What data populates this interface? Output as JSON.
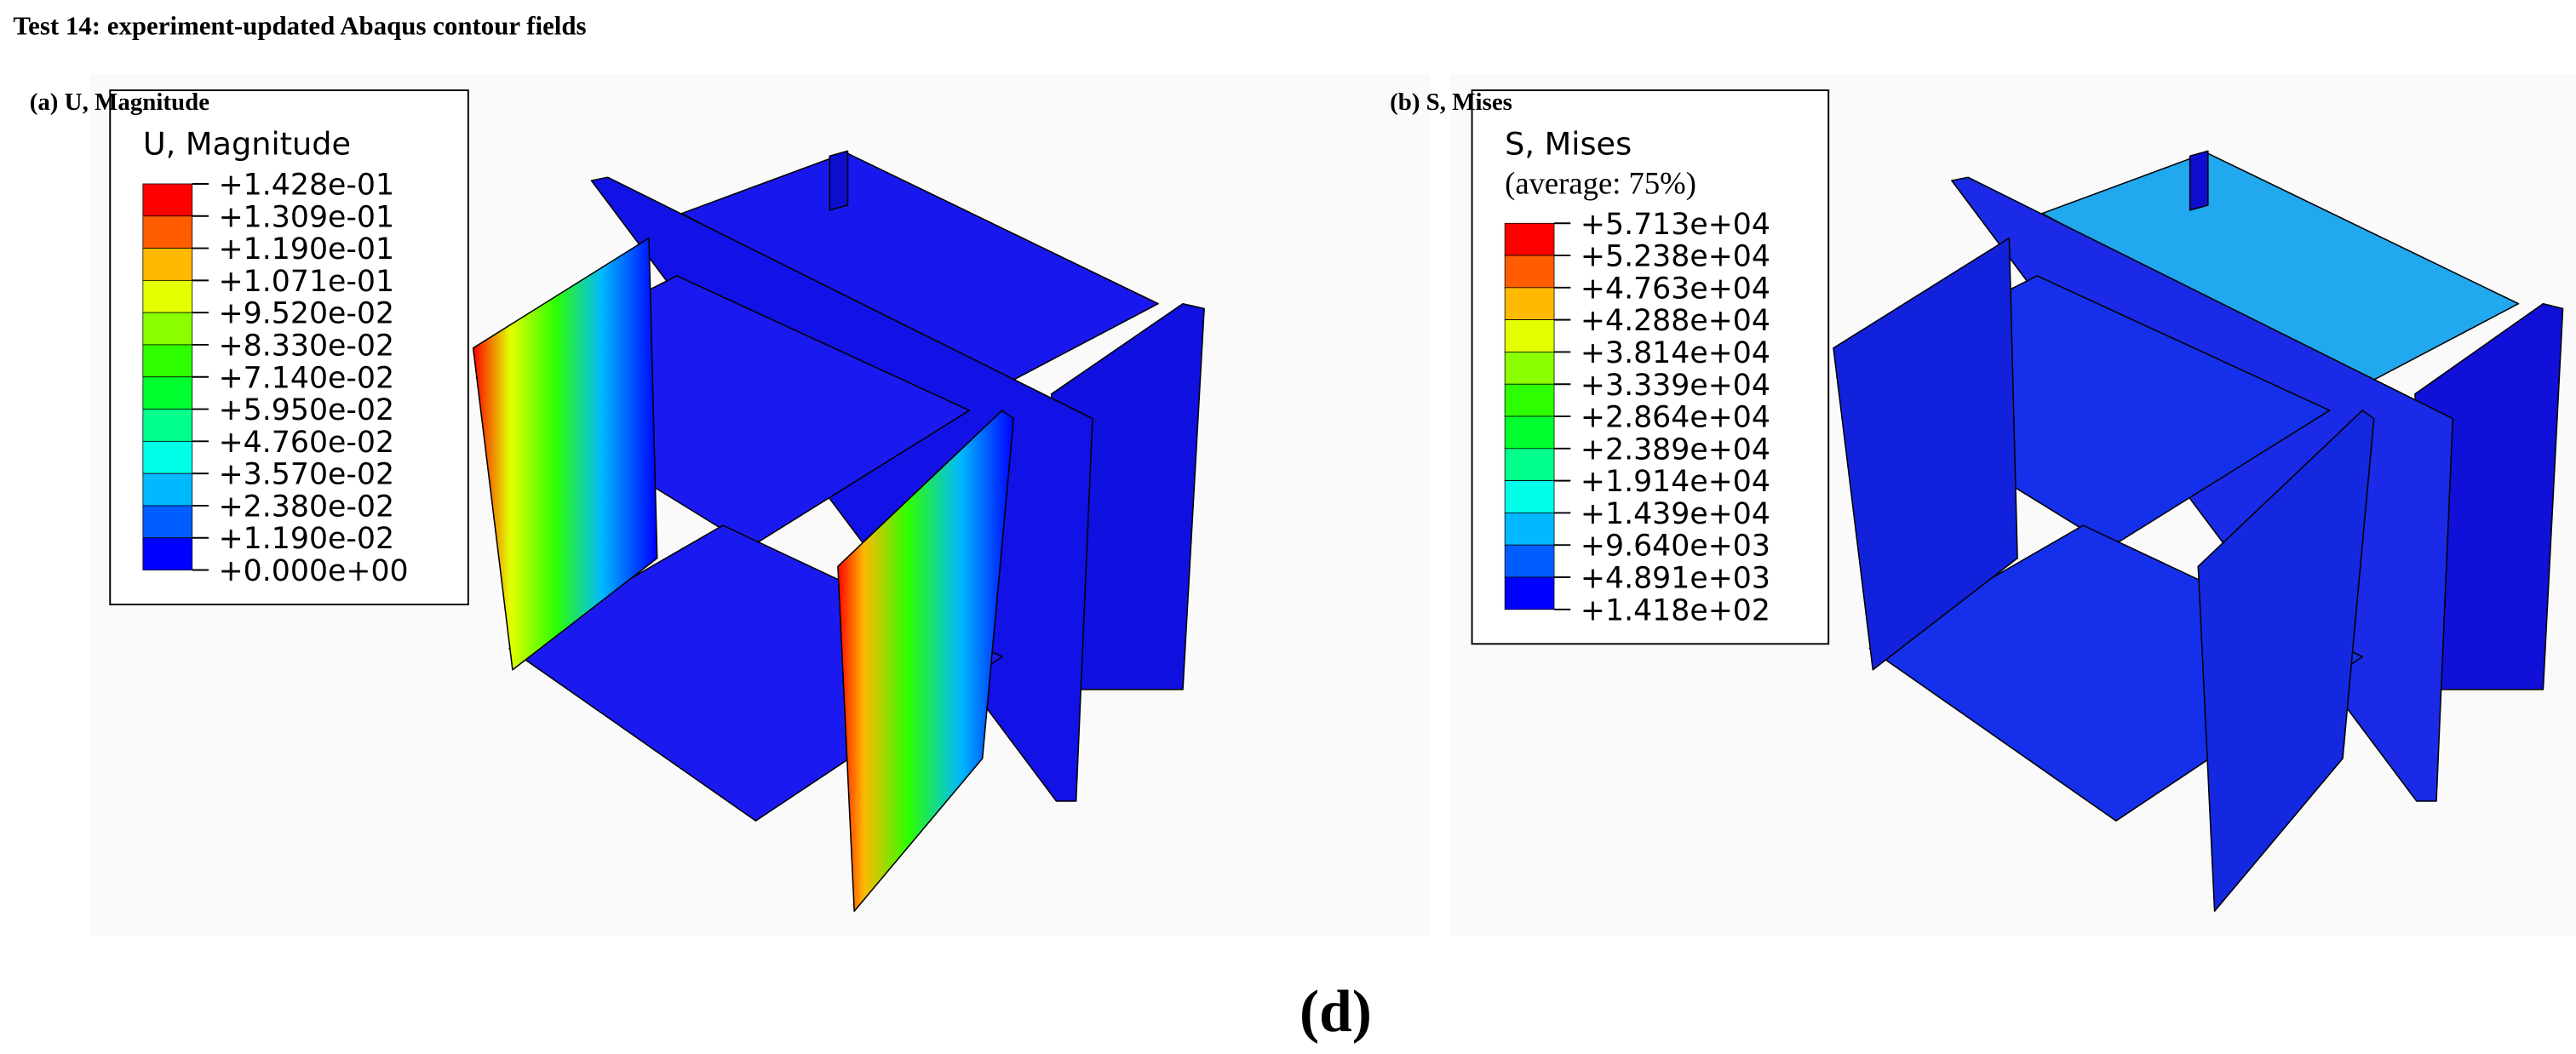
{
  "title": "Test 14: experiment-updated Abaqus contour fields",
  "panels": [
    {
      "label": "(a) U, Magnitude",
      "legend": {
        "title": "U, Magnitude",
        "entries": [
          "+1.428e-01",
          "+1.309e-01",
          "+1.190e-01",
          "+1.071e-01",
          "+9.520e-02",
          "+8.330e-02",
          "+7.140e-02",
          "+5.950e-02",
          "+4.760e-02",
          "+3.570e-02",
          "+2.380e-02",
          "+1.190e-02",
          "+0.000e+00"
        ]
      }
    },
    {
      "label": "(b) S, Mises",
      "legend": {
        "title": "S, Mises",
        "subtitle": "(average: 75%)",
        "entries": [
          "+5.713e+04",
          "+5.238e+04",
          "+4.763e+04",
          "+4.288e+04",
          "+3.814e+04",
          "+3.339e+04",
          "+2.864e+04",
          "+2.389e+04",
          "+1.914e+04",
          "+1.439e+04",
          "+9.640e+03",
          "+4.891e+03",
          "+1.418e+02"
        ]
      }
    }
  ],
  "legend_colors": [
    "#ff0000",
    "#ff5d00",
    "#ffb900",
    "#e3ff00",
    "#8bff00",
    "#2eff00",
    "#00ff2e",
    "#00ff8b",
    "#00ffe8",
    "#00b9ff",
    "#005dff",
    "#0000ff"
  ],
  "caption": "(d)"
}
